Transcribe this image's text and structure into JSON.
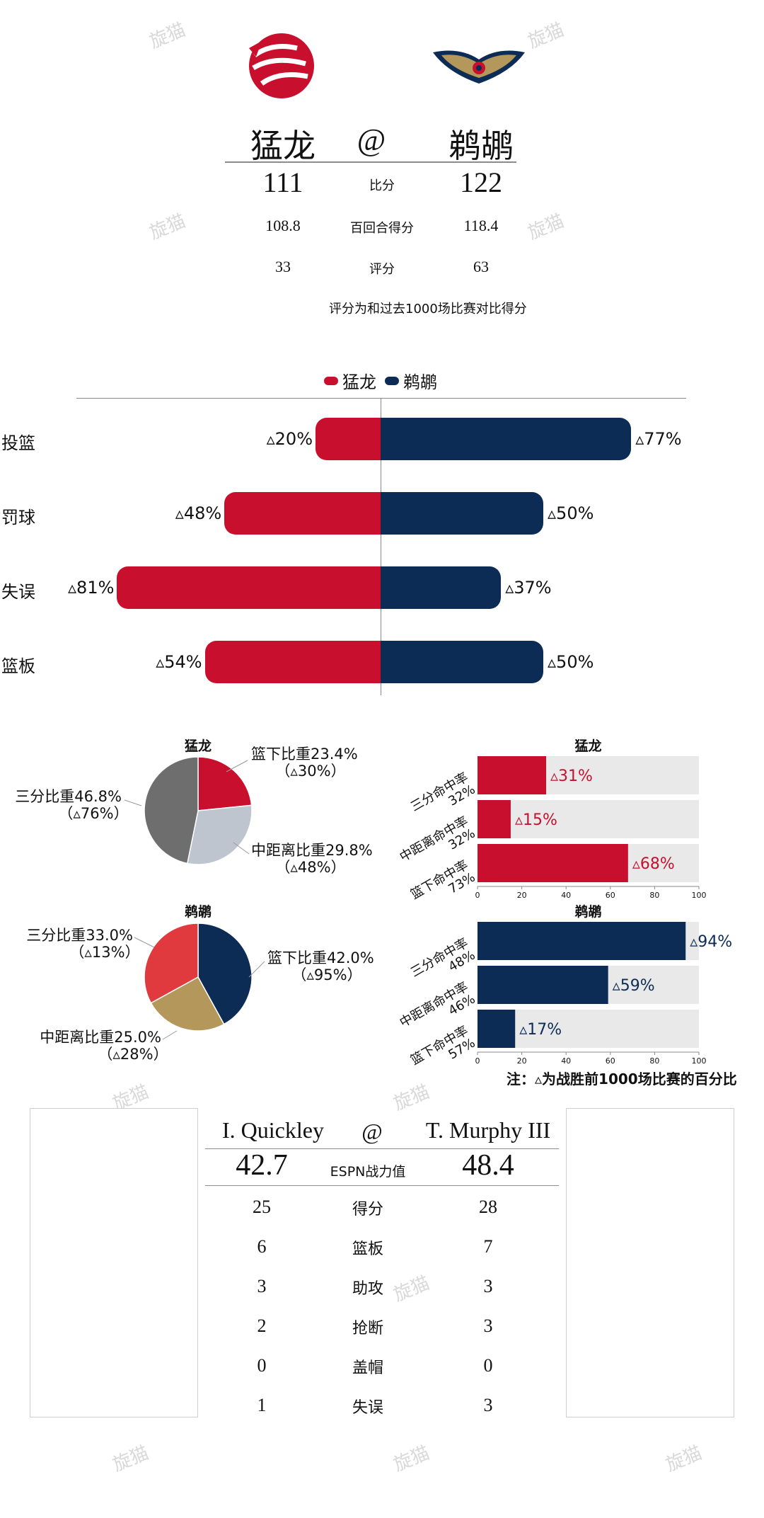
{
  "header": {
    "away_team": "猛龙",
    "at": "@",
    "home_team": "鹈鹕",
    "rows": [
      {
        "away": "111",
        "label": "比分",
        "home": "122"
      },
      {
        "away": "108.8",
        "label": "百回合得分",
        "home": "118.4"
      },
      {
        "away": "33",
        "label": "评分",
        "home": "63"
      }
    ],
    "note": "评分为和过去1000场比赛对比得分"
  },
  "colors": {
    "raptors": "#C8102E",
    "pelicans": "#0C2C56",
    "gray": "#E9E9E9",
    "pie_mid_raptors": "#BEC5CE",
    "pie_three_raptors": "#6E6E6E",
    "pie_three_pelicans": "#E03A3E",
    "pie_mid_pelicans": "#B4975A"
  },
  "chart_data": [
    {
      "type": "bar",
      "legend": [
        "猛龙",
        "鹈鹕"
      ],
      "categories": [
        "投篮",
        "罚球",
        "失误",
        "篮板"
      ],
      "series": [
        {
          "name": "猛龙",
          "values": [
            20,
            48,
            81,
            54
          ],
          "labels": [
            "▵20%",
            "▵48%",
            "▵81%",
            "▵54%"
          ]
        },
        {
          "name": "鹈鹕",
          "values": [
            77,
            50,
            37,
            50
          ],
          "labels": [
            "▵77%",
            "▵50%",
            "▵37%",
            "▵50%"
          ]
        }
      ]
    },
    {
      "type": "pie",
      "title": "猛龙",
      "slices": [
        {
          "label": "篮下比重23.4%",
          "sub": "（▵30%）",
          "value": 23.4
        },
        {
          "label": "中距离比重29.8%",
          "sub": "（▵48%）",
          "value": 29.8
        },
        {
          "label": "三分比重46.8%",
          "sub": "（▵76%）",
          "value": 46.8
        }
      ]
    },
    {
      "type": "pie",
      "title": "鹈鹕",
      "slices": [
        {
          "label": "篮下比重42.0%",
          "sub": "（▵95%）",
          "value": 42.0
        },
        {
          "label": "中距离比重25.0%",
          "sub": "（▵28%）",
          "value": 25.0
        },
        {
          "label": "三分比重33.0%",
          "sub": "（▵13%）",
          "value": 33.0
        }
      ]
    },
    {
      "type": "bar",
      "title": "猛龙",
      "categories": [
        "三分命中率\n32%",
        "中距离命中率\n32%",
        "篮下命中率\n73%"
      ],
      "values": [
        31,
        15,
        68
      ],
      "labels": [
        "▵31%",
        "▵15%",
        "▵68%"
      ],
      "xlim": [
        0,
        100
      ],
      "xticks": [
        "0",
        "20",
        "40",
        "60",
        "80",
        "100"
      ]
    },
    {
      "type": "bar",
      "title": "鹈鹕",
      "categories": [
        "三分命中率\n48%",
        "中距离命中率\n46%",
        "篮下命中率\n57%"
      ],
      "values": [
        94,
        59,
        17
      ],
      "labels": [
        "▵94%",
        "▵59%",
        "▵17%"
      ],
      "xlim": [
        0,
        100
      ],
      "xticks": [
        "0",
        "20",
        "40",
        "60",
        "80",
        "100"
      ]
    }
  ],
  "footnote": "注：▵为战胜前1000场比赛的百分比",
  "players": {
    "away_name": "I. Quickley",
    "at": "@",
    "home_name": "T. Murphy III",
    "rating_label": "ESPN战力值",
    "away_rating": "42.7",
    "home_rating": "48.4",
    "stats": [
      {
        "away": "25",
        "label": "得分",
        "home": "28"
      },
      {
        "away": "6",
        "label": "篮板",
        "home": "7"
      },
      {
        "away": "3",
        "label": "助攻",
        "home": "3"
      },
      {
        "away": "2",
        "label": "抢断",
        "home": "3"
      },
      {
        "away": "0",
        "label": "盖帽",
        "home": "0"
      },
      {
        "away": "1",
        "label": "失误",
        "home": "3"
      }
    ]
  },
  "watermark": "旋猫"
}
